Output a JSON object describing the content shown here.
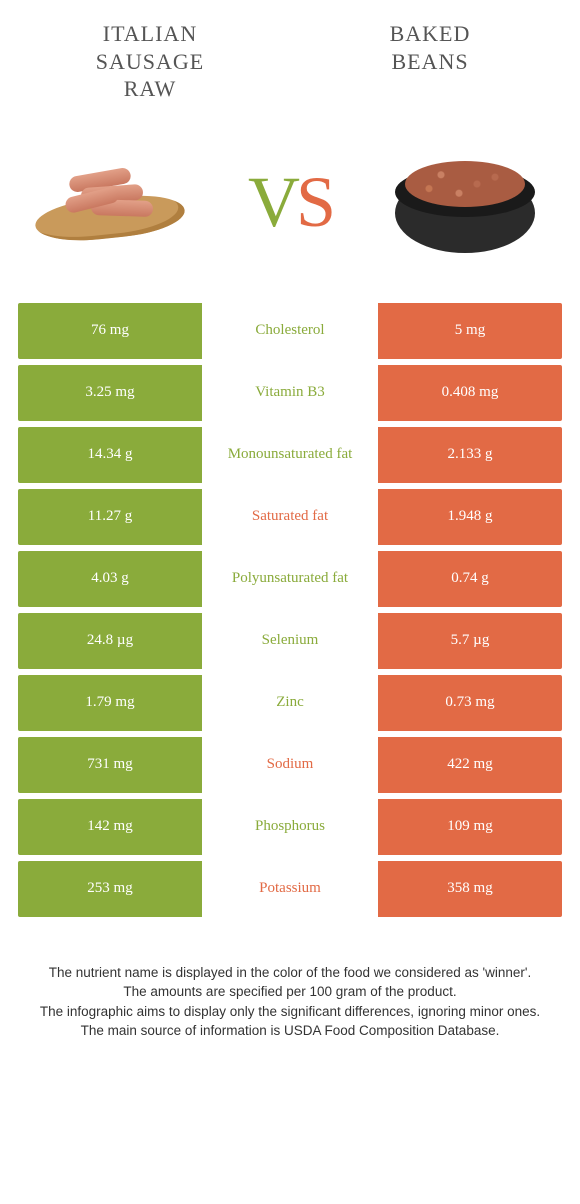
{
  "colors": {
    "green": "#8aab3b",
    "orange": "#e26a45",
    "white": "#ffffff"
  },
  "header": {
    "left_title_line1": "Italian",
    "left_title_line2": "sausage",
    "left_title_line3": "raw",
    "right_title_line1": "Baked",
    "right_title_line2": "beans"
  },
  "vs": {
    "v": "V",
    "s": "S"
  },
  "rows": [
    {
      "label": "Cholesterol",
      "left": "76 mg",
      "right": "5 mg",
      "winner": "left"
    },
    {
      "label": "Vitamin B3",
      "left": "3.25 mg",
      "right": "0.408 mg",
      "winner": "left"
    },
    {
      "label": "Monounsaturated fat",
      "left": "14.34 g",
      "right": "2.133 g",
      "winner": "left"
    },
    {
      "label": "Saturated fat",
      "left": "11.27 g",
      "right": "1.948 g",
      "winner": "right"
    },
    {
      "label": "Polyunsaturated fat",
      "left": "4.03 g",
      "right": "0.74 g",
      "winner": "left"
    },
    {
      "label": "Selenium",
      "left": "24.8 µg",
      "right": "5.7 µg",
      "winner": "left"
    },
    {
      "label": "Zinc",
      "left": "1.79 mg",
      "right": "0.73 mg",
      "winner": "left"
    },
    {
      "label": "Sodium",
      "left": "731 mg",
      "right": "422 mg",
      "winner": "right"
    },
    {
      "label": "Phosphorus",
      "left": "142 mg",
      "right": "109 mg",
      "winner": "left"
    },
    {
      "label": "Potassium",
      "left": "253 mg",
      "right": "358 mg",
      "winner": "right"
    }
  ],
  "footer": {
    "line1": "The nutrient name is displayed in the color of the food we considered as 'winner'.",
    "line2": "The amounts are specified per 100 gram of the product.",
    "line3": "The infographic aims to display only the significant differences, ignoring minor ones.",
    "line4": "The main source of information is USDA Food Composition Database."
  }
}
